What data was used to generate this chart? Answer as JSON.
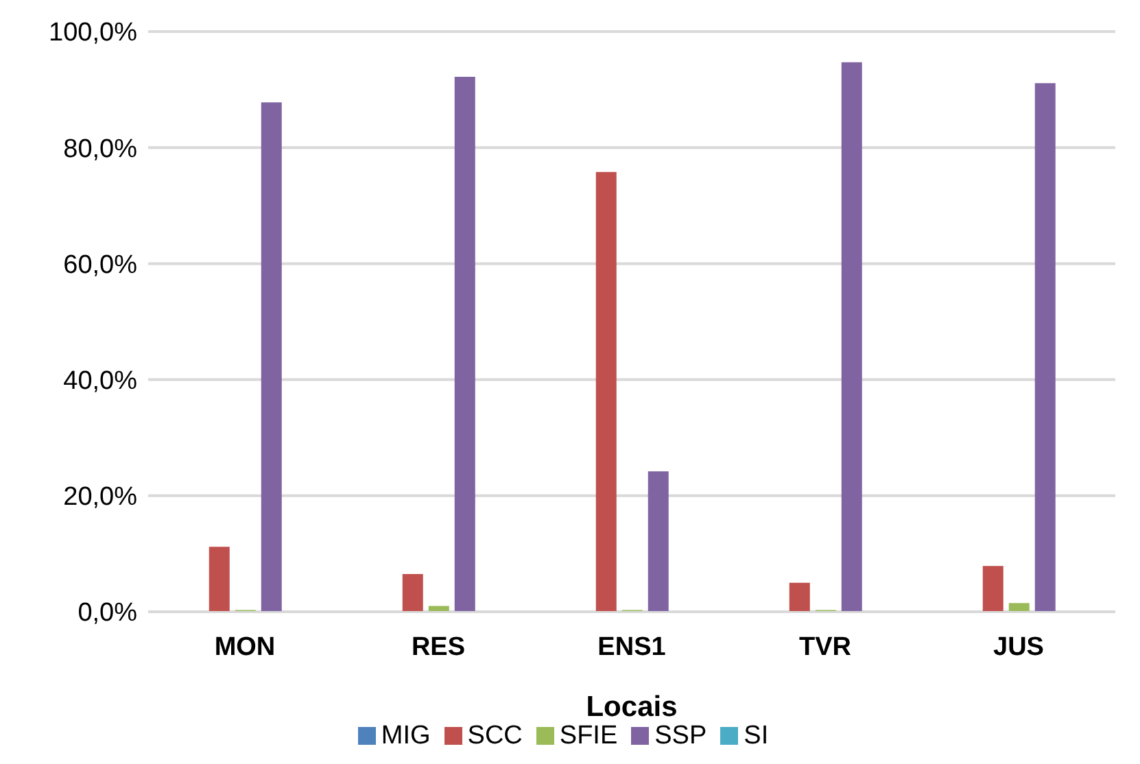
{
  "chart_data": {
    "type": "bar",
    "xlabel": "Locais",
    "categories": [
      "MON",
      "RES",
      "ENS1",
      "TVR",
      "JUS"
    ],
    "series": [
      {
        "name": "MIG",
        "color": "#4f81bd",
        "values": [
          0,
          0,
          0,
          0,
          0
        ]
      },
      {
        "name": "SCC",
        "color": "#c0504d",
        "values": [
          11.2,
          6.5,
          75.8,
          5.0,
          7.9
        ]
      },
      {
        "name": "SFIE",
        "color": "#9bbb59",
        "values": [
          0.3,
          1.0,
          0.3,
          0.3,
          1.5
        ]
      },
      {
        "name": "SSP",
        "color": "#8064a2",
        "values": [
          87.8,
          92.2,
          24.2,
          94.7,
          91.1
        ]
      },
      {
        "name": "SI",
        "color": "#4bacc6",
        "values": [
          0,
          0,
          0,
          0,
          0
        ]
      }
    ],
    "ylim": [
      0,
      100
    ],
    "yticks": [
      {
        "value": 0,
        "label": "0,0%"
      },
      {
        "value": 20,
        "label": "20,0%"
      },
      {
        "value": 40,
        "label": "40,0%"
      },
      {
        "value": 60,
        "label": "60,0%"
      },
      {
        "value": 80,
        "label": "80,0%"
      },
      {
        "value": 100,
        "label": "100,0%"
      }
    ],
    "grid": "y",
    "legend": "bottom"
  }
}
